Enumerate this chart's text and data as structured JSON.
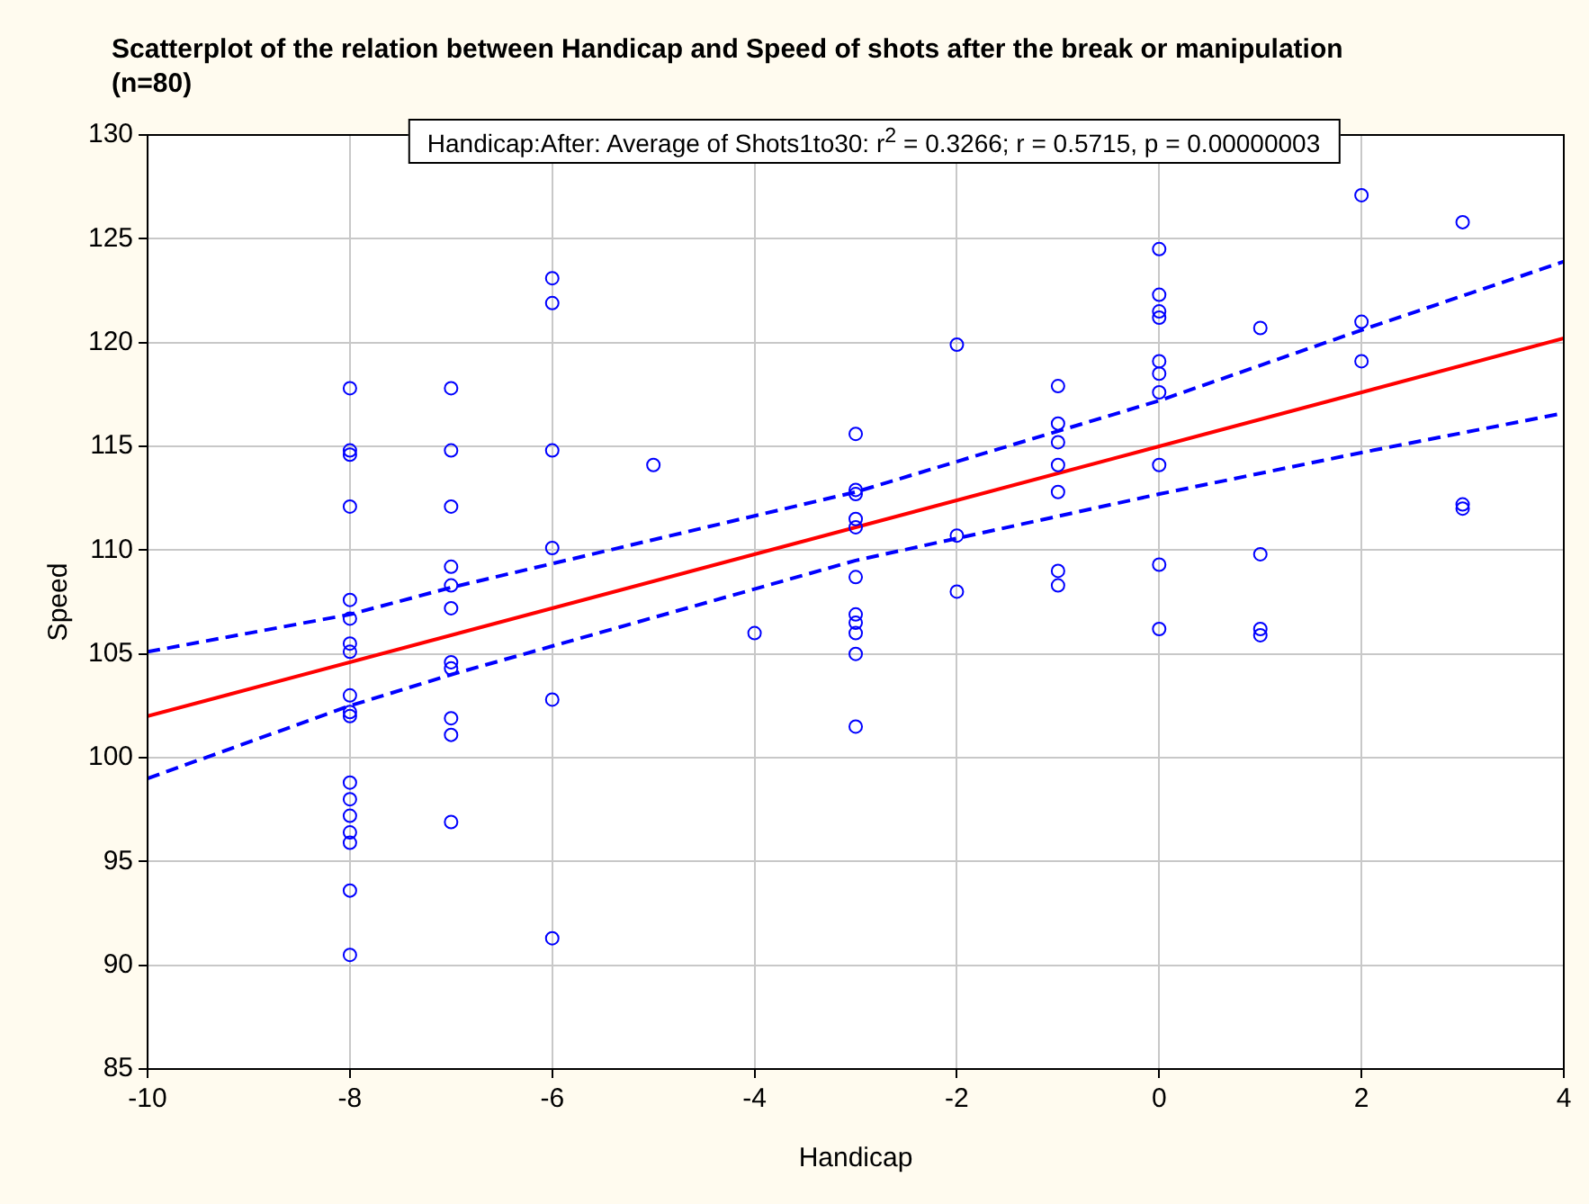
{
  "chart_data": {
    "type": "scatter",
    "title": "Scatterplot of the relation between Handicap and Speed of shots after the break or manipulation (n=80)",
    "xlabel": "Handicap",
    "ylabel": "Speed",
    "annotations": [
      "Handicap:After: Average of Shots1to30:  r$^{2}$ = 0.3266;  r = 0.5715, p = 0.00000003"
    ],
    "xlim": [
      -10,
      4
    ],
    "xticks": [
      -10,
      -8,
      -6,
      -4,
      -2,
      0,
      2,
      4
    ],
    "ylim": [
      85,
      130
    ],
    "yticks": [
      85,
      90,
      95,
      100,
      105,
      110,
      115,
      120,
      125,
      130
    ],
    "grid": true,
    "legend": false,
    "series": [
      {
        "color": "#0000ff",
        "marker": "circle",
        "x": [
          -8,
          -8,
          -8,
          -8,
          -8,
          -8,
          -8,
          -8,
          -8,
          -8,
          -8,
          -8,
          -8,
          -8,
          -8,
          -8,
          -8,
          -8,
          -7,
          -7,
          -7,
          -7,
          -7,
          -7,
          -7,
          -7,
          -7,
          -7,
          -7,
          -6,
          -6,
          -6,
          -6,
          -6,
          -6,
          -5,
          -4,
          -3,
          -3,
          -3,
          -3,
          -3,
          -3,
          -3,
          -3,
          -3,
          -3,
          -3,
          -2,
          -2,
          -2,
          -1,
          -1,
          -1,
          -1,
          -1,
          -1,
          -1,
          0,
          0,
          0,
          0,
          0,
          0,
          0,
          0,
          0,
          0,
          1,
          1,
          1,
          1,
          2,
          2,
          2,
          3,
          3,
          3
        ],
        "values": [
          117.8,
          114.8,
          114.6,
          112.1,
          107.6,
          106.7,
          105.5,
          105.1,
          103.0,
          102.2,
          102.0,
          98.8,
          98.0,
          97.2,
          96.4,
          95.9,
          93.6,
          90.5,
          117.8,
          114.8,
          112.1,
          109.2,
          108.3,
          107.2,
          104.6,
          104.3,
          101.9,
          101.1,
          96.9,
          123.1,
          121.9,
          114.8,
          110.1,
          102.8,
          91.3,
          114.1,
          106.0,
          115.6,
          112.9,
          112.7,
          111.5,
          111.1,
          108.7,
          106.9,
          106.5,
          106.0,
          105.0,
          101.5,
          119.9,
          110.7,
          108.0,
          117.9,
          116.1,
          115.2,
          114.1,
          112.8,
          109.0,
          108.3,
          124.5,
          122.3,
          121.5,
          121.2,
          119.1,
          118.5,
          117.6,
          114.1,
          109.3,
          106.2,
          120.7,
          109.8,
          106.2,
          105.9,
          127.1,
          121.0,
          119.1,
          125.8,
          112.2,
          112.0
        ]
      },
      {
        "type": "line",
        "color": "#ff0000",
        "line_style": "solid",
        "x": [
          -10,
          4
        ],
        "values": [
          102.0,
          120.2
        ]
      },
      {
        "type": "line",
        "color": "#0000ff",
        "line_style": "dashed",
        "x": [
          -10,
          -8,
          -7,
          -3,
          0,
          2,
          4
        ],
        "values": [
          105.1,
          106.9,
          108.2,
          112.8,
          117.2,
          120.6,
          123.9
        ]
      },
      {
        "type": "line",
        "color": "#0000ff",
        "line_style": "dashed",
        "x": [
          -10,
          -8,
          -7,
          -3,
          0,
          2,
          4
        ],
        "values": [
          99.0,
          102.5,
          104.0,
          109.5,
          112.7,
          114.7,
          116.6
        ]
      }
    ]
  }
}
